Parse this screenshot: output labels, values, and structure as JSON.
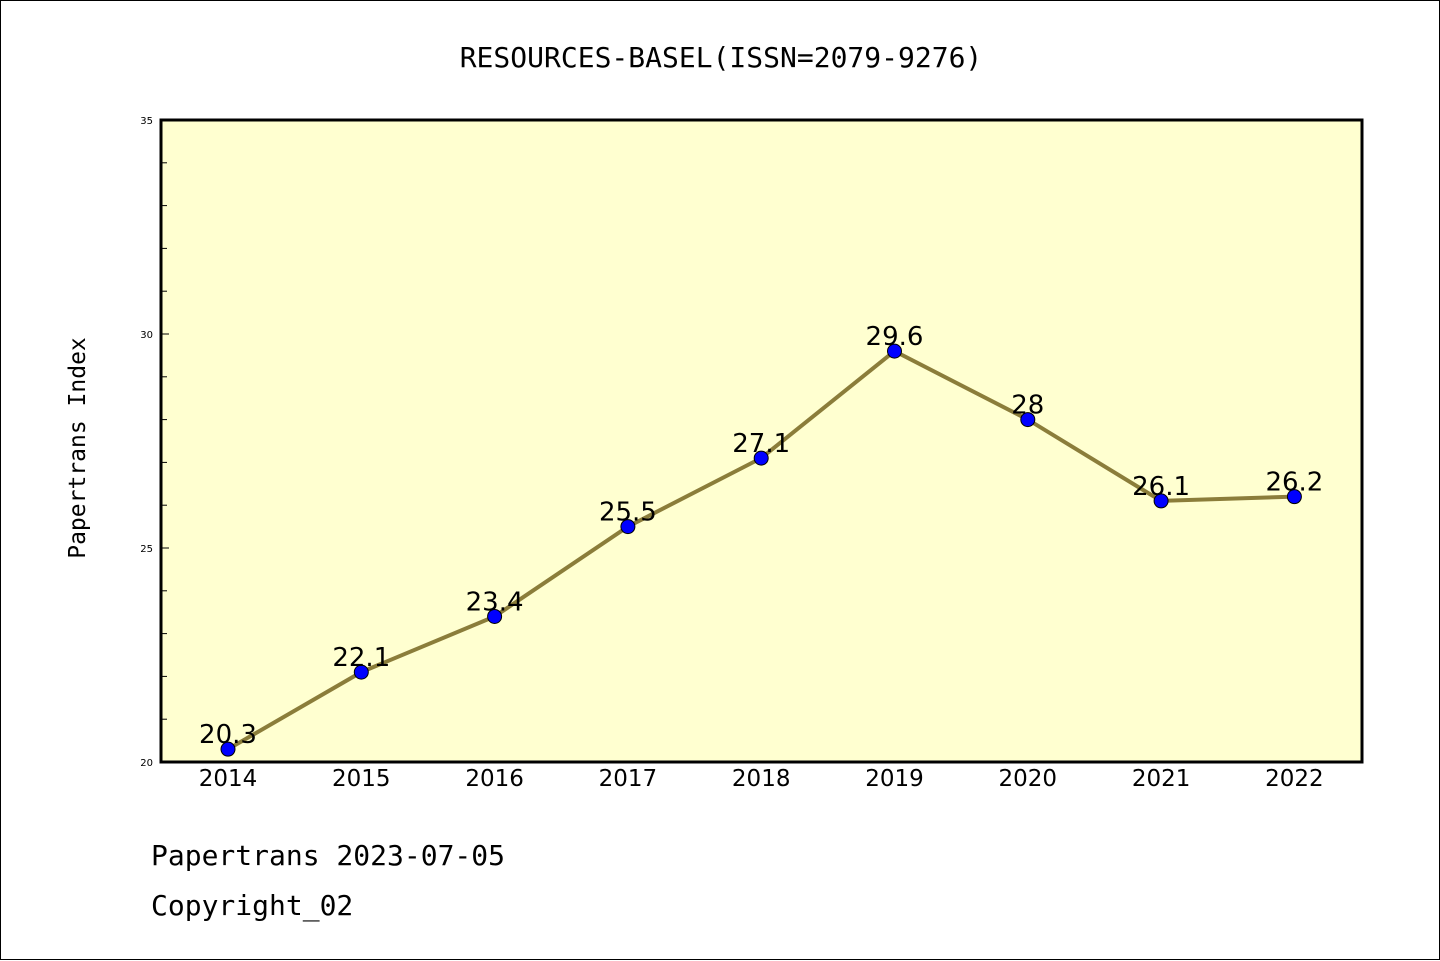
{
  "chart_data": {
    "type": "line",
    "title": "RESOURCES-BASEL(ISSN=2079-9276)",
    "ylabel": "Papertrans Index",
    "xlabel": "",
    "categories": [
      "2014",
      "2015",
      "2016",
      "2017",
      "2018",
      "2019",
      "2020",
      "2021",
      "2022"
    ],
    "series": [
      {
        "values": [
          20.3,
          22.1,
          23.4,
          25.5,
          27.1,
          29.6,
          28,
          26.1,
          26.2
        ],
        "labels": [
          "20.3",
          "22.1",
          "23.4",
          "25.5",
          "27.1",
          "29.6",
          "28",
          "26.1",
          "26.2"
        ],
        "line_color": "#8b7d3a",
        "marker_color": "#0000ff"
      }
    ],
    "ylim": [
      20,
      35
    ],
    "yticks": [
      "20",
      "25",
      "30",
      "35"
    ],
    "plot_background": "#ffffd0",
    "grid": false
  },
  "footer": {
    "line1": "Papertrans 2023-07-05",
    "line2": "Copyright_02"
  }
}
